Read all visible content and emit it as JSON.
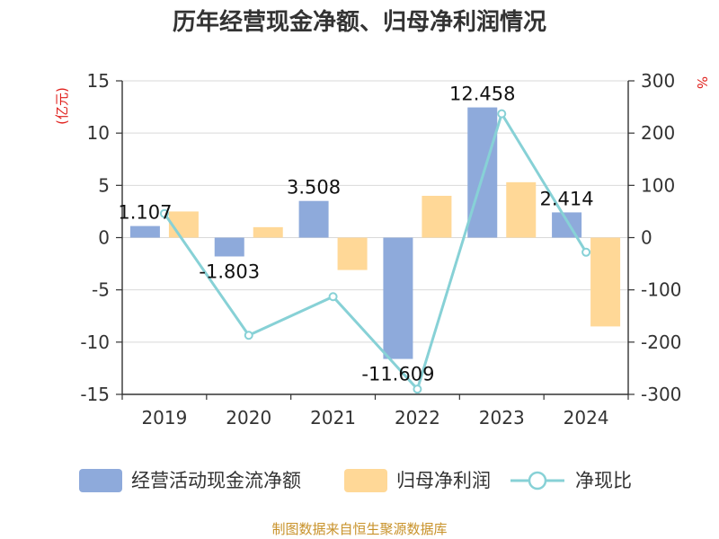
{
  "chart_data": {
    "type": "bar",
    "title": "历年经营现金净额、归母净利润情况",
    "categories": [
      "2019",
      "2020",
      "2021",
      "2022",
      "2023",
      "2024"
    ],
    "left_axis": {
      "unit": "(亿元)",
      "ylim": [
        -15,
        15
      ],
      "ticks": [
        "15",
        "10",
        "5",
        "0",
        "-5",
        "-10",
        "-15"
      ],
      "tick_values": [
        15,
        10,
        5,
        0,
        -5,
        -10,
        -15
      ]
    },
    "right_axis": {
      "unit": "%",
      "ylim": [
        -300,
        300
      ],
      "ticks": [
        "300",
        "200",
        "100",
        "0",
        "-100",
        "-200",
        "-300"
      ],
      "tick_values": [
        300,
        200,
        100,
        0,
        -100,
        -200,
        -300
      ]
    },
    "series": [
      {
        "name": "经营活动现金流净额",
        "type": "bar",
        "axis": "left",
        "color": "#8eaadb",
        "values": [
          1.107,
          -1.803,
          3.508,
          -11.609,
          12.458,
          2.414
        ],
        "labels": [
          "1.107",
          "-1.803",
          "3.508",
          "-11.609",
          "12.458",
          "2.414"
        ]
      },
      {
        "name": "归母净利润",
        "type": "bar",
        "axis": "left",
        "color": "#ffd897",
        "values": [
          2.5,
          1.0,
          -3.1,
          4.0,
          5.3,
          -8.5
        ]
      },
      {
        "name": "净现比",
        "type": "line",
        "axis": "right",
        "color": "#87d1d6",
        "values": [
          46,
          -187,
          -113,
          -290,
          237,
          -28
        ]
      }
    ],
    "grid": true,
    "legend_position": "bottom",
    "source": "制图数据来自恒生聚源数据库"
  }
}
